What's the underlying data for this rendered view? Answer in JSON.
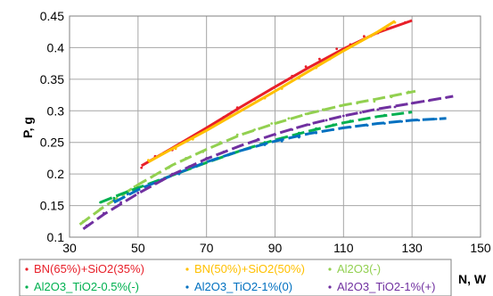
{
  "chart_data": {
    "type": "scatter",
    "title": "",
    "xlabel": "N, W",
    "ylabel": "P, g",
    "xlim": [
      30,
      150
    ],
    "ylim": [
      0.1,
      0.45
    ],
    "x_ticks": [
      "30",
      "50",
      "70",
      "90",
      "110",
      "130",
      "150"
    ],
    "y_ticks": [
      "0.1",
      "0.15",
      "0.2",
      "0.25",
      "0.3",
      "0.35",
      "0.4",
      "0.45"
    ],
    "grid": true,
    "legend_position": "bottom",
    "series": [
      {
        "name": "BN(65%)+SiO2(35%)",
        "color": "#e8202a",
        "trend_x": [
          51,
          60,
          70,
          80,
          90,
          100,
          110,
          120,
          130
        ],
        "trend_y": [
          0.213,
          0.241,
          0.273,
          0.306,
          0.338,
          0.369,
          0.398,
          0.424,
          0.443
        ],
        "points": [
          [
            51,
            0.21
          ],
          [
            55,
            0.228
          ],
          [
            60,
            0.238
          ],
          [
            64,
            0.252
          ],
          [
            70,
            0.27
          ],
          [
            75,
            0.29
          ],
          [
            79,
            0.305
          ],
          [
            84,
            0.318
          ],
          [
            89,
            0.335
          ],
          [
            95,
            0.355
          ],
          [
            99,
            0.37
          ],
          [
            103,
            0.382
          ],
          [
            108,
            0.398
          ],
          [
            112,
            0.405
          ],
          [
            116,
            0.418
          ],
          [
            120,
            0.423
          ],
          [
            124,
            0.432
          ],
          [
            128,
            0.44
          ]
        ]
      },
      {
        "name": "BN(50%)+SiO2(50%)",
        "color": "#ffc000",
        "trend_x": [
          53,
          60,
          70,
          80,
          90,
          100,
          110,
          120,
          125
        ],
        "trend_y": [
          0.219,
          0.24,
          0.269,
          0.3,
          0.331,
          0.363,
          0.395,
          0.425,
          0.442
        ],
        "points": [
          [
            53,
            0.222
          ],
          [
            57,
            0.232
          ],
          [
            61,
            0.24
          ],
          [
            66,
            0.255
          ],
          [
            72,
            0.275
          ],
          [
            77,
            0.292
          ],
          [
            82,
            0.306
          ],
          [
            87,
            0.32
          ],
          [
            92,
            0.335
          ],
          [
            97,
            0.352
          ],
          [
            102,
            0.368
          ],
          [
            106,
            0.382
          ],
          [
            110,
            0.395
          ],
          [
            115,
            0.41
          ],
          [
            118,
            0.418
          ],
          [
            122,
            0.43
          ],
          [
            125,
            0.44
          ]
        ]
      },
      {
        "name": "Al2O3(-)",
        "color": "#92d050",
        "trend_x": [
          33,
          40,
          50,
          60,
          70,
          80,
          90,
          100,
          110,
          120,
          131
        ],
        "trend_y": [
          0.12,
          0.148,
          0.183,
          0.214,
          0.239,
          0.262,
          0.28,
          0.296,
          0.309,
          0.319,
          0.331
        ],
        "points": [
          [
            34,
            0.125
          ],
          [
            39,
            0.145
          ],
          [
            44,
            0.165
          ],
          [
            49,
            0.18
          ],
          [
            54,
            0.195
          ],
          [
            59,
            0.21
          ],
          [
            64,
            0.225
          ],
          [
            69,
            0.235
          ],
          [
            74,
            0.25
          ],
          [
            79,
            0.262
          ],
          [
            84,
            0.27
          ],
          [
            89,
            0.28
          ],
          [
            94,
            0.288
          ],
          [
            99,
            0.295
          ],
          [
            104,
            0.302
          ],
          [
            109,
            0.308
          ],
          [
            114,
            0.312
          ],
          [
            119,
            0.315
          ],
          [
            124,
            0.322
          ],
          [
            129,
            0.33
          ]
        ]
      },
      {
        "name": "Al2O3_TiO2-0.5%(-)",
        "color": "#00b050",
        "trend_x": [
          39,
          45,
          50,
          60,
          70,
          80,
          90,
          100,
          110,
          120,
          130
        ],
        "trend_y": [
          0.155,
          0.168,
          0.178,
          0.198,
          0.218,
          0.237,
          0.254,
          0.268,
          0.281,
          0.291,
          0.298
        ],
        "points": [
          [
            39,
            0.155
          ],
          [
            43,
            0.162
          ],
          [
            47,
            0.17
          ],
          [
            52,
            0.18
          ],
          [
            57,
            0.19
          ],
          [
            62,
            0.2
          ],
          [
            67,
            0.212
          ],
          [
            72,
            0.222
          ],
          [
            77,
            0.232
          ],
          [
            82,
            0.24
          ],
          [
            87,
            0.25
          ],
          [
            92,
            0.257
          ],
          [
            97,
            0.265
          ],
          [
            102,
            0.272
          ],
          [
            107,
            0.278
          ],
          [
            112,
            0.284
          ],
          [
            117,
            0.288
          ],
          [
            122,
            0.293
          ],
          [
            127,
            0.296
          ]
        ]
      },
      {
        "name": "Al2O3_TiO2-1%(0)",
        "color": "#0070c0",
        "trend_x": [
          43,
          50,
          60,
          70,
          80,
          90,
          100,
          110,
          120,
          130,
          140
        ],
        "trend_y": [
          0.155,
          0.175,
          0.198,
          0.219,
          0.237,
          0.252,
          0.264,
          0.273,
          0.28,
          0.285,
          0.288
        ],
        "points": [
          [
            43,
            0.158
          ],
          [
            47,
            0.168
          ],
          [
            52,
            0.18
          ],
          [
            57,
            0.19
          ],
          [
            62,
            0.2
          ],
          [
            67,
            0.212
          ],
          [
            72,
            0.222
          ],
          [
            77,
            0.232
          ],
          [
            82,
            0.24
          ],
          [
            87,
            0.246
          ],
          [
            92,
            0.252
          ],
          [
            97,
            0.258
          ],
          [
            102,
            0.265
          ],
          [
            107,
            0.27
          ],
          [
            112,
            0.274
          ],
          [
            117,
            0.277
          ],
          [
            122,
            0.28
          ],
          [
            127,
            0.283
          ],
          [
            132,
            0.285
          ],
          [
            137,
            0.287
          ]
        ]
      },
      {
        "name": "Al2O3_TiO2-1%(+)",
        "color": "#7030a0",
        "trend_x": [
          34,
          40,
          50,
          60,
          70,
          80,
          90,
          100,
          110,
          120,
          130,
          142
        ],
        "trend_y": [
          0.113,
          0.136,
          0.169,
          0.199,
          0.224,
          0.245,
          0.263,
          0.279,
          0.292,
          0.303,
          0.312,
          0.323
        ],
        "points": [
          [
            35,
            0.118
          ],
          [
            40,
            0.138
          ],
          [
            45,
            0.155
          ],
          [
            50,
            0.17
          ],
          [
            55,
            0.185
          ],
          [
            60,
            0.2
          ],
          [
            65,
            0.212
          ],
          [
            70,
            0.225
          ],
          [
            75,
            0.235
          ],
          [
            80,
            0.245
          ],
          [
            85,
            0.255
          ],
          [
            90,
            0.262
          ],
          [
            95,
            0.27
          ],
          [
            100,
            0.278
          ],
          [
            105,
            0.285
          ],
          [
            110,
            0.292
          ],
          [
            115,
            0.297
          ],
          [
            120,
            0.302
          ],
          [
            125,
            0.306
          ],
          [
            130,
            0.312
          ],
          [
            135,
            0.316
          ],
          [
            140,
            0.321
          ]
        ]
      }
    ]
  }
}
